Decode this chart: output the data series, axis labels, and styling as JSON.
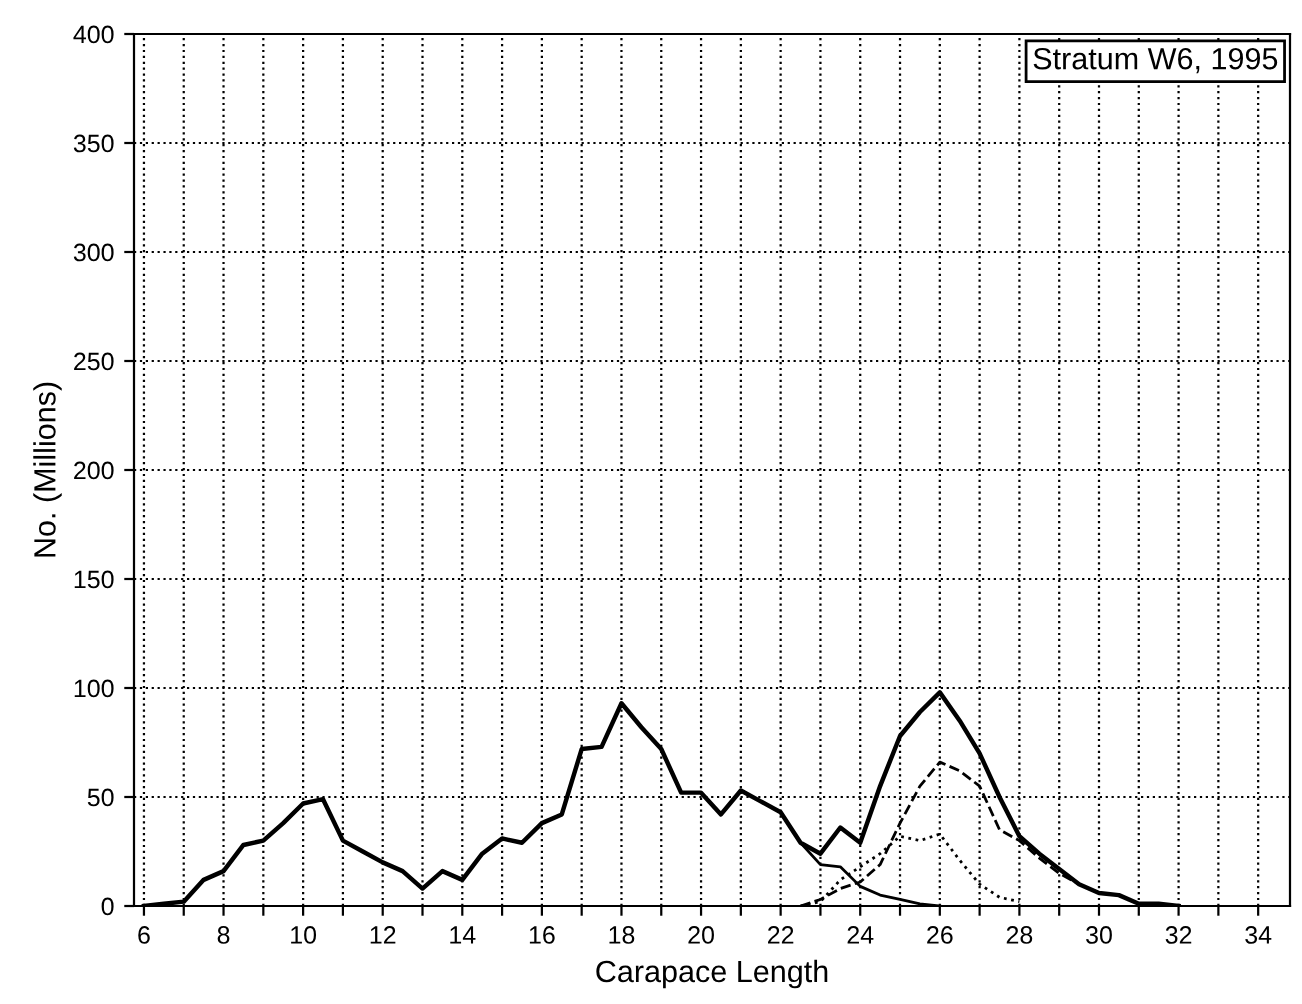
{
  "chart_data": {
    "type": "line",
    "xlabel": "Carapace Length",
    "ylabel": "No. (Millions)",
    "annotations": [
      "Stratum W6, 1995"
    ],
    "xlim": [
      5.75,
      34.8
    ],
    "ylim": [
      0,
      400
    ],
    "xticks": [
      6,
      {
        "value": 7,
        "label": null
      },
      8,
      {
        "value": 9,
        "label": null
      },
      10,
      {
        "value": 11,
        "label": null
      },
      12,
      {
        "value": 13,
        "label": null
      },
      14,
      {
        "value": 15,
        "label": null
      },
      16,
      {
        "value": 17,
        "label": null
      },
      18,
      {
        "value": 19,
        "label": null
      },
      20,
      {
        "value": 21,
        "label": null
      },
      22,
      {
        "value": 23,
        "label": null
      },
      24,
      {
        "value": 25,
        "label": null
      },
      26,
      {
        "value": 27,
        "label": null
      },
      28,
      {
        "value": 29,
        "label": null
      },
      30,
      {
        "value": 31,
        "label": null
      },
      32,
      {
        "value": 33,
        "label": null
      },
      34
    ],
    "yticks": [
      0,
      50,
      100,
      150,
      200,
      250,
      300,
      350,
      400
    ],
    "grid": true,
    "marker": "none",
    "series": [
      {
        "color": "#000000",
        "line_style": "solid",
        "x": [
          6,
          6.5,
          7,
          7.5,
          8,
          8.5,
          9,
          9.5,
          10,
          10.5,
          11,
          11.5,
          12,
          12.5,
          13,
          13.5,
          14,
          14.5,
          15,
          15.5,
          16,
          16.5,
          17,
          17.5,
          18,
          18.5,
          19,
          19.5,
          20,
          20.5,
          21,
          21.5,
          22,
          22.5,
          23,
          23.5,
          24,
          24.5,
          25,
          25.5,
          26,
          26.5,
          27,
          27.5,
          28,
          28.5,
          29,
          29.5,
          30,
          30.5,
          31,
          31.5,
          32
        ],
        "values": [
          0,
          1,
          2,
          12,
          16,
          28,
          30,
          38,
          47,
          49,
          30,
          25,
          20,
          16,
          8,
          16,
          12,
          24,
          31,
          29,
          38,
          42,
          72,
          73,
          93,
          82,
          72,
          52,
          52,
          42,
          53,
          48,
          43,
          29,
          24,
          36,
          29,
          55,
          78,
          89,
          98,
          85,
          70,
          50,
          32,
          24,
          17,
          10,
          6,
          5,
          1,
          1,
          0
        ]
      },
      {
        "color": "#000000",
        "line_style": "solid",
        "x": [
          22,
          22.5,
          23,
          23.5,
          24,
          24.5,
          25,
          25.5,
          26
        ],
        "values": [
          43,
          29,
          19,
          18,
          9,
          5,
          3,
          1,
          0
        ]
      },
      {
        "color": "#000000",
        "line_style": "dotted",
        "x": [
          22.5,
          23,
          23.5,
          24,
          24.5,
          25,
          25.5,
          26,
          26.5,
          27,
          27.5,
          28
        ],
        "values": [
          0,
          2,
          12,
          18,
          24,
          32,
          30,
          33,
          21,
          10,
          4,
          2
        ]
      },
      {
        "color": "#000000",
        "line_style": "dashed",
        "x": [
          22.5,
          23,
          23.5,
          24,
          24.5,
          25,
          25.5,
          26,
          26.5,
          27,
          27.5,
          28,
          28.5,
          29,
          29.5,
          30
        ],
        "values": [
          0,
          3,
          8,
          11,
          19,
          38,
          55,
          66,
          62,
          55,
          35,
          30,
          22,
          15,
          10,
          6
        ]
      }
    ]
  }
}
